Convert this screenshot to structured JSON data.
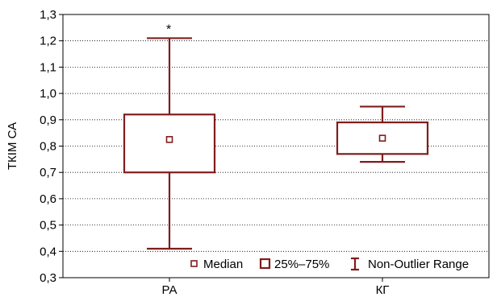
{
  "chart_data": {
    "type": "boxplot",
    "ylabel": "ТКІМ СА",
    "ylim": [
      0.3,
      1.3
    ],
    "ytick_step": 0.1,
    "ytick_decimals": 1,
    "decimal_separator": ",",
    "grid": {
      "horizontal": true,
      "style": "dotted"
    },
    "categories": [
      "РА",
      "КГ"
    ],
    "boxes": [
      {
        "category": "РА",
        "median": 0.825,
        "q1": 0.7,
        "q3": 0.92,
        "whisker_low": 0.41,
        "whisker_high": 1.21,
        "outlier_marker": "*"
      },
      {
        "category": "КГ",
        "median": 0.83,
        "q1": 0.77,
        "q3": 0.89,
        "whisker_low": 0.74,
        "whisker_high": 0.95,
        "outlier_marker": ""
      }
    ],
    "legend": {
      "position": "bottom-right",
      "items": [
        "Median",
        "25%–75%",
        "Non-Outlier Range"
      ]
    },
    "colors": {
      "box": "#7f1d1d",
      "grid": "#000000",
      "frame": "#000000"
    }
  }
}
